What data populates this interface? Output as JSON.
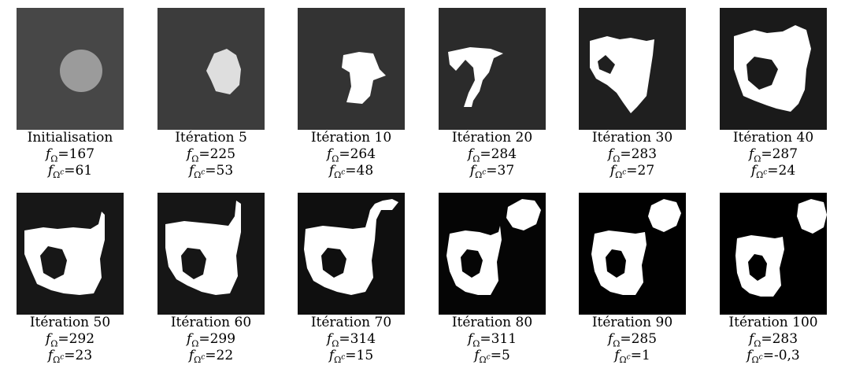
{
  "figure": {
    "panels": [
      {
        "label": "Initialisation",
        "f_in": "167",
        "f_out": "61",
        "bg": "#474747",
        "fg": "#9b9b9b",
        "shape": "circle"
      },
      {
        "label": "Itération 5",
        "f_in": "225",
        "f_out": "53",
        "bg": "#3c3c3c",
        "fg": "#dedede",
        "shape": "blob5"
      },
      {
        "label": "Itération 10",
        "f_in": "264",
        "f_out": "48",
        "bg": "#333333",
        "fg": "#ffffff",
        "shape": "blob10"
      },
      {
        "label": "Itération 20",
        "f_in": "284",
        "f_out": "37",
        "bg": "#2b2b2b",
        "fg": "#ffffff",
        "shape": "blob20"
      },
      {
        "label": "Itération 30",
        "f_in": "283",
        "f_out": "27",
        "bg": "#1f1f1f",
        "fg": "#ffffff",
        "shape": "blob30"
      },
      {
        "label": "Itération 40",
        "f_in": "287",
        "f_out": "24",
        "bg": "#1a1a1a",
        "fg": "#ffffff",
        "shape": "blob40"
      },
      {
        "label": "Itération 50",
        "f_in": "292",
        "f_out": "23",
        "bg": "#171717",
        "fg": "#ffffff",
        "shape": "blob50"
      },
      {
        "label": "Itération 60",
        "f_in": "299",
        "f_out": "22",
        "bg": "#161616",
        "fg": "#ffffff",
        "shape": "blob60"
      },
      {
        "label": "Itération 70",
        "f_in": "314",
        "f_out": "15",
        "bg": "#0f0f0f",
        "fg": "#ffffff",
        "shape": "blob70"
      },
      {
        "label": "Itération 80",
        "f_in": "311",
        "f_out": "5",
        "bg": "#050505",
        "fg": "#ffffff",
        "shape": "blob80"
      },
      {
        "label": "Itération 90",
        "f_in": "285",
        "f_out": "1",
        "bg": "#010101",
        "fg": "#ffffff",
        "shape": "blob90"
      },
      {
        "label": "Itération 100",
        "f_in": "283",
        "f_out": "-0,3",
        "bg": "#000000",
        "fg": "#ffffff",
        "shape": "blob100"
      }
    ]
  }
}
